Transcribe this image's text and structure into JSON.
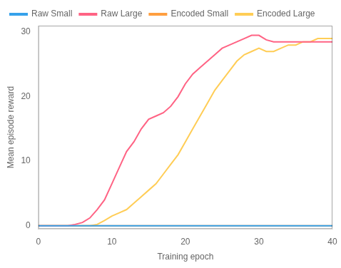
{
  "chart_data": {
    "type": "line",
    "xlabel": "Training epoch",
    "ylabel": "Mean episode reward",
    "x": [
      0,
      1,
      2,
      3,
      4,
      5,
      6,
      7,
      8,
      9,
      10,
      11,
      12,
      13,
      14,
      15,
      16,
      17,
      18,
      19,
      20,
      21,
      22,
      23,
      24,
      25,
      26,
      27,
      28,
      29,
      30,
      31,
      32,
      33,
      34,
      35,
      36,
      37,
      38,
      39,
      40
    ],
    "xlim": [
      0,
      40
    ],
    "ylim": [
      -0.5,
      31
    ],
    "xticks": [
      0,
      10,
      20,
      30,
      40
    ],
    "yticks": [
      0,
      10,
      20,
      30
    ],
    "grid": false,
    "legend": "upper left",
    "series": [
      {
        "name": "Raw Small",
        "values": [
          0,
          0,
          0,
          0,
          0,
          0,
          0,
          0,
          0,
          0,
          0,
          0,
          0,
          0,
          0,
          0,
          0,
          0,
          0,
          0,
          0,
          0,
          0,
          0,
          0,
          0,
          0,
          0,
          0,
          0,
          0,
          0,
          0,
          0,
          0,
          0,
          0,
          0,
          0,
          0,
          0
        ]
      },
      {
        "name": "Raw Large",
        "values": [
          0,
          0,
          0,
          0,
          0,
          0.2,
          0.5,
          1.2,
          2.5,
          4.0,
          6.5,
          9.0,
          11.5,
          13.0,
          15.0,
          16.5,
          17.0,
          17.5,
          18.5,
          20.0,
          22.0,
          23.5,
          24.5,
          25.5,
          26.5,
          27.5,
          28.0,
          28.5,
          29.0,
          29.5,
          29.5,
          28.8,
          28.5,
          28.5,
          28.5,
          28.5,
          28.5,
          28.5,
          28.5,
          28.5,
          28.5
        ]
      },
      {
        "name": "Encoded Small",
        "values": [
          0,
          0,
          0,
          0,
          0,
          0,
          0,
          0,
          0,
          0,
          0,
          0,
          0,
          0,
          0,
          0,
          0,
          0,
          0,
          0,
          0,
          0,
          0,
          0,
          0,
          0,
          0,
          0,
          0,
          0,
          0,
          0,
          0,
          0,
          0,
          0,
          0,
          0,
          0,
          0,
          0
        ]
      },
      {
        "name": "Encoded Large",
        "values": [
          0,
          0,
          0,
          0,
          0,
          0,
          0,
          0,
          0.2,
          0.8,
          1.5,
          2.0,
          2.5,
          3.5,
          4.5,
          5.5,
          6.5,
          8.0,
          9.5,
          11.0,
          13.0,
          15.0,
          17.0,
          19.0,
          21.0,
          22.5,
          24.0,
          25.5,
          26.5,
          27.0,
          27.5,
          27.0,
          27.0,
          27.5,
          28.0,
          28.0,
          28.5,
          28.5,
          29.0,
          29.0,
          29.0
        ]
      }
    ]
  }
}
